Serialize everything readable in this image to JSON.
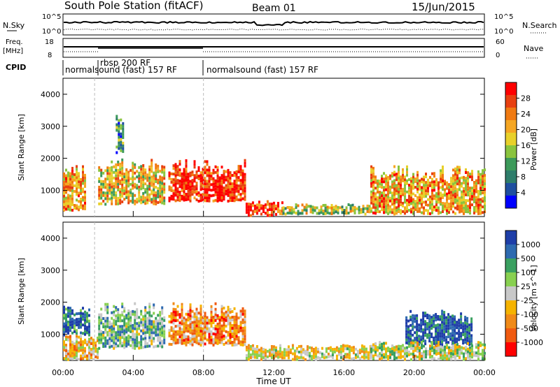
{
  "header": {
    "title": "South Pole Station (fitACF)",
    "beam": "Beam 01",
    "date": "15/Jun/2015"
  },
  "housekeeping": {
    "nsky_label": "N.Sky",
    "nsky_ticks": [
      "10^5",
      "10^0"
    ],
    "nsearch_label": "N.Search",
    "nsearch_ticks": [
      "10^5",
      "10^0"
    ],
    "freq_label": "Freq.",
    "freq_unit": "[MHz]",
    "freq_ticks": [
      "18",
      "8"
    ],
    "nave_label": "Nave",
    "nave_ticks": [
      "60",
      "0"
    ],
    "cpid_label": "CPID",
    "cpid_segments": [
      {
        "label": "normalsound (fast) 157 RF",
        "start_hour": 0.0,
        "end_hour": 1.8
      },
      {
        "label": "rbsp 200 RF",
        "start_hour": 1.8,
        "end_hour": 8.0
      },
      {
        "label": "normalsound (fast) 157 RF",
        "start_hour": 8.0,
        "end_hour": 24.0
      }
    ]
  },
  "power_colorbar": {
    "label": "Power [dB]",
    "ticks": [
      "28",
      "24",
      "20",
      "16",
      "12",
      "8",
      "4"
    ]
  },
  "velocity_colorbar": {
    "label": "Velocity [m s^-1]",
    "ticks": [
      "1000",
      "500",
      "100",
      "25",
      "-25",
      "-100",
      "-500",
      "-1000"
    ]
  },
  "time_axis": {
    "label": "Time UT",
    "ticks": [
      "00:00",
      "04:00",
      "08:00",
      "12:00",
      "16:00",
      "20:00",
      "00:00"
    ]
  },
  "chart_data": [
    {
      "type": "heatmap",
      "quantity": "Power",
      "ylabel": "Slant Range [km]",
      "xlabel": "",
      "x_range_hours": [
        0,
        24
      ],
      "ylim": [
        180,
        4500
      ],
      "yticks": [
        1000,
        2000,
        3000,
        4000
      ],
      "color_range": [
        0,
        30
      ],
      "regions": [
        {
          "t0": 0.0,
          "t1": 1.3,
          "r0": 400,
          "r1": 1900,
          "value": 20
        },
        {
          "t0": 2.0,
          "t1": 5.8,
          "r0": 600,
          "r1": 2000,
          "value": 18
        },
        {
          "t0": 3.0,
          "t1": 3.4,
          "r0": 2200,
          "r1": 3500,
          "value": 10
        },
        {
          "t0": 6.0,
          "t1": 10.4,
          "r0": 700,
          "r1": 2000,
          "value": 28
        },
        {
          "t0": 10.4,
          "t1": 12.5,
          "r0": 250,
          "r1": 700,
          "value": 26
        },
        {
          "t0": 12.5,
          "t1": 17.5,
          "r0": 300,
          "r1": 600,
          "value": 14
        },
        {
          "t0": 17.5,
          "t1": 24.0,
          "r0": 300,
          "r1": 1800,
          "value": 20
        }
      ]
    },
    {
      "type": "heatmap",
      "quantity": "Velocity",
      "ylabel": "Slant Range [km]",
      "xlabel": "Time UT",
      "x_range_hours": [
        0,
        24
      ],
      "ylim": [
        180,
        4500
      ],
      "yticks": [
        1000,
        2000,
        3000,
        4000
      ],
      "color_range": [
        -1000,
        1000
      ],
      "regions": [
        {
          "t0": 0.0,
          "t1": 1.5,
          "r0": 1000,
          "r1": 1900,
          "value": 700
        },
        {
          "t0": 0.0,
          "t1": 2.0,
          "r0": 250,
          "r1": 1000,
          "value": -200
        },
        {
          "t0": 2.0,
          "t1": 5.8,
          "r0": 600,
          "r1": 2000,
          "value": 300
        },
        {
          "t0": 6.0,
          "t1": 10.4,
          "r0": 700,
          "r1": 2000,
          "value": -400
        },
        {
          "t0": 10.4,
          "t1": 17.5,
          "r0": 250,
          "r1": 700,
          "value": -50
        },
        {
          "t0": 19.5,
          "t1": 23.3,
          "r0": 700,
          "r1": 1800,
          "value": 800
        },
        {
          "t0": 17.5,
          "t1": 24.0,
          "r0": 250,
          "r1": 800,
          "value": 50
        }
      ]
    }
  ]
}
